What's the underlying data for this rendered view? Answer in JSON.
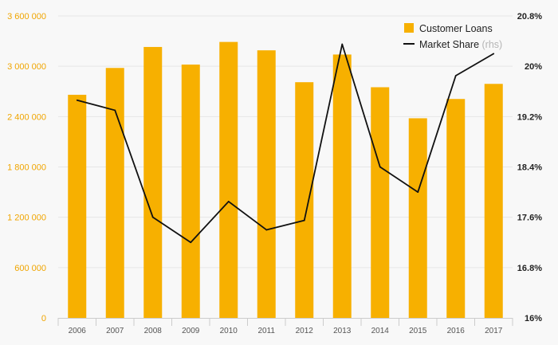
{
  "chart_data": {
    "type": "bar+line",
    "categories": [
      "2006",
      "2007",
      "2008",
      "2009",
      "2010",
      "2011",
      "2012",
      "2013",
      "2014",
      "2015",
      "2016",
      "2017"
    ],
    "series": [
      {
        "name": "Customer Loans",
        "type": "bar",
        "axis": "left",
        "color": "#f7b000",
        "values": [
          2660000,
          2980000,
          3230000,
          3020000,
          3290000,
          3190000,
          2810000,
          3140000,
          2750000,
          2380000,
          2610000,
          2790000
        ]
      },
      {
        "name": "Market Share",
        "type": "line",
        "axis": "right",
        "color": "#111111",
        "values": [
          19.46,
          19.3,
          17.6,
          17.2,
          17.85,
          17.4,
          17.55,
          20.35,
          18.4,
          18.0,
          19.85,
          20.2
        ]
      }
    ],
    "legend_suffix": "(rhs)",
    "y_left": {
      "ylim": [
        0,
        3600000
      ],
      "ticks": [
        0,
        600000,
        1200000,
        1800000,
        2400000,
        3000000,
        3600000
      ],
      "tick_labels": [
        "0",
        "600 000",
        "1 200 000",
        "1 800 000",
        "2 400 000",
        "3 000 000",
        "3 600 000"
      ]
    },
    "y_right": {
      "ylim": [
        16,
        20.8
      ],
      "ticks": [
        16,
        16.8,
        17.6,
        18.4,
        19.2,
        20,
        20.8
      ],
      "tick_labels": [
        "16%",
        "16.8%",
        "17.6%",
        "18.4%",
        "19.2%",
        "20%",
        "20.8%"
      ]
    },
    "grid": true,
    "legend_position": "top-right",
    "colors": {
      "background": "#f8f8f8",
      "grid": "#e6e6e6",
      "axis": "#cccccc",
      "left_ticks": "#f0a500",
      "right_ticks": "#222222"
    }
  }
}
